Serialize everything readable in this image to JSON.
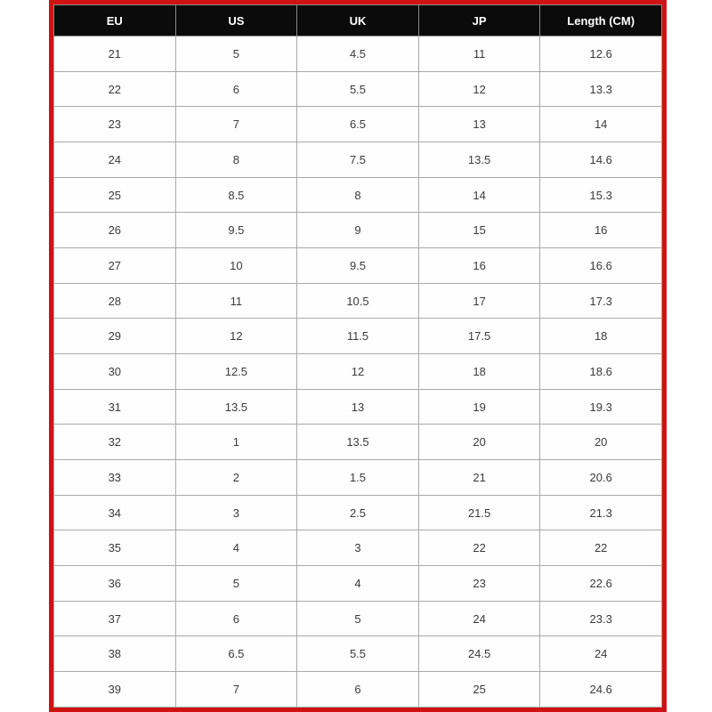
{
  "colors": {
    "frame_border": "#cf1212",
    "header_bg": "#0b0b0b",
    "header_text": "#ffffff",
    "gridline": "#a9a9a9",
    "cell_text": "#3a3a3a",
    "page_bg": "#ffffff"
  },
  "chart_data": {
    "type": "table",
    "title": "",
    "columns": [
      "EU",
      "US",
      "UK",
      "JP",
      "Length (CM)"
    ],
    "rows": [
      [
        "21",
        "5",
        "4.5",
        "11",
        "12.6"
      ],
      [
        "22",
        "6",
        "5.5",
        "12",
        "13.3"
      ],
      [
        "23",
        "7",
        "6.5",
        "13",
        "14"
      ],
      [
        "24",
        "8",
        "7.5",
        "13.5",
        "14.6"
      ],
      [
        "25",
        "8.5",
        "8",
        "14",
        "15.3"
      ],
      [
        "26",
        "9.5",
        "9",
        "15",
        "16"
      ],
      [
        "27",
        "10",
        "9.5",
        "16",
        "16.6"
      ],
      [
        "28",
        "11",
        "10.5",
        "17",
        "17.3"
      ],
      [
        "29",
        "12",
        "11.5",
        "17.5",
        "18"
      ],
      [
        "30",
        "12.5",
        "12",
        "18",
        "18.6"
      ],
      [
        "31",
        "13.5",
        "13",
        "19",
        "19.3"
      ],
      [
        "32",
        "1",
        "13.5",
        "20",
        "20"
      ],
      [
        "33",
        "2",
        "1.5",
        "21",
        "20.6"
      ],
      [
        "34",
        "3",
        "2.5",
        "21.5",
        "21.3"
      ],
      [
        "35",
        "4",
        "3",
        "22",
        "22"
      ],
      [
        "36",
        "5",
        "4",
        "23",
        "22.6"
      ],
      [
        "37",
        "6",
        "5",
        "24",
        "23.3"
      ],
      [
        "38",
        "6.5",
        "5.5",
        "24.5",
        "24"
      ],
      [
        "39",
        "7",
        "6",
        "25",
        "24.6"
      ]
    ]
  }
}
